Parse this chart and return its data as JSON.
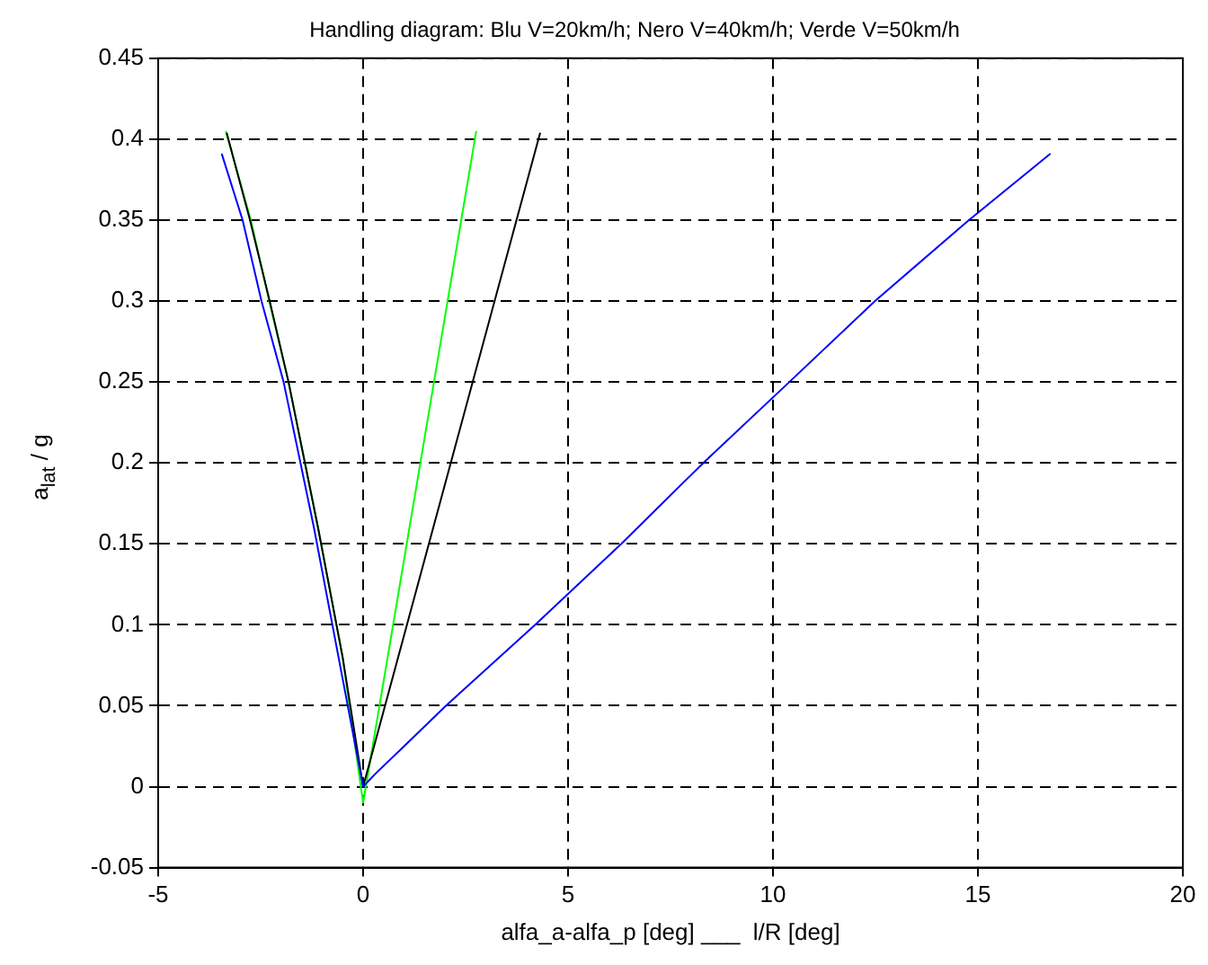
{
  "chart_data": {
    "type": "line",
    "title": "Handling diagram: Blu V=20km/h; Nero V=40km/h; Verde V=50km/h",
    "xlabel": "alfa_a-alfa_p [deg] ___  l/R [deg]",
    "ylabel": "a$_{lat}$ / g",
    "series": [
      {
        "color": "#0000ff",
        "x": [
          -3.45,
          -2.94,
          -2.48,
          -1.94,
          -1.2,
          -0.6,
          0
        ],
        "values": [
          0.391,
          0.35,
          0.3,
          0.25,
          0.16,
          0.08,
          0
        ]
      },
      {
        "color": "#0000ff",
        "x": [
          0,
          0.3,
          1.0,
          2.02,
          4.2,
          6.3,
          8.3,
          10.4,
          12.49,
          14.78,
          16.77
        ],
        "values": [
          0,
          0.008,
          0.025,
          0.05,
          0.1,
          0.15,
          0.2,
          0.25,
          0.3,
          0.35,
          0.391
        ]
      },
      {
        "color": "#000000",
        "x": [
          -3.33,
          -2.76,
          -2.28,
          -1.82,
          -1.1,
          -0.5,
          0
        ],
        "values": [
          0.404,
          0.35,
          0.3,
          0.25,
          0.16,
          0.08,
          0
        ]
      },
      {
        "color": "#000000",
        "x": [
          0,
          4.32
        ],
        "values": [
          0,
          0.404
        ]
      },
      {
        "color": "#00ff00",
        "x": [
          -3.35,
          -2.74,
          -2.29,
          -1.82,
          -1.1,
          -0.5,
          0
        ],
        "values": [
          0.405,
          0.35,
          0.3,
          0.25,
          0.16,
          0.08,
          -0.01
        ]
      },
      {
        "color": "#00ff00",
        "x": [
          0,
          2.76
        ],
        "values": [
          -0.01,
          0.405
        ]
      }
    ],
    "xlim": [
      -5,
      20
    ],
    "xticks": [
      -5,
      0,
      5,
      10,
      15,
      20
    ],
    "ylim": [
      -0.05,
      0.45
    ],
    "yticks": [
      -0.05,
      0,
      0.05,
      0.1,
      0.15,
      0.2,
      0.25,
      0.3,
      0.35,
      0.4,
      0.45
    ],
    "grid": true,
    "legend": false,
    "marker": "none",
    "line_style": "solid"
  }
}
